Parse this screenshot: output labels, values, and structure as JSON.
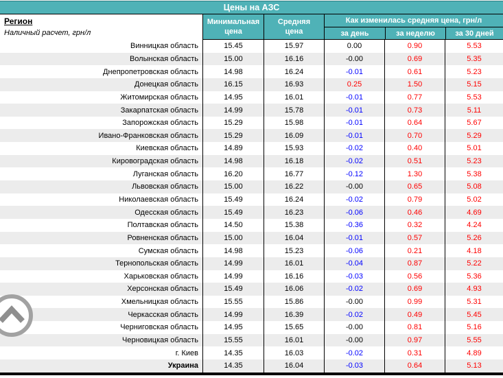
{
  "table": {
    "title": "Цены на АЗС",
    "region_header": {
      "label": "Регион",
      "note": "Наличный расчет, грн/л"
    },
    "columns": {
      "min": "Минимальная цена",
      "avg": "Средняя цена",
      "change_group": "Как изменилась средняя цена, грн/л",
      "change_sub": [
        "за день",
        "за неделю",
        "за 30 дней"
      ]
    },
    "rows": [
      {
        "region": "Винницкая область",
        "min": "15.45",
        "avg": "15.97",
        "day": "0.00",
        "week": "0.90",
        "month": "5.53"
      },
      {
        "region": "Волынская область",
        "min": "15.00",
        "avg": "16.16",
        "day": "-0.00",
        "week": "0.69",
        "month": "5.35"
      },
      {
        "region": "Днепропетровская область",
        "min": "14.98",
        "avg": "16.24",
        "day": "-0.01",
        "week": "0.61",
        "month": "5.23"
      },
      {
        "region": "Донецкая область",
        "min": "16.15",
        "avg": "16.93",
        "day": "0.25",
        "week": "1.50",
        "month": "5.15"
      },
      {
        "region": "Житомирская область",
        "min": "14.95",
        "avg": "16.01",
        "day": "-0.01",
        "week": "0.77",
        "month": "5.53"
      },
      {
        "region": "Закарпатская область",
        "min": "14.99",
        "avg": "15.78",
        "day": "-0.01",
        "week": "0.73",
        "month": "5.11"
      },
      {
        "region": "Запорожская область",
        "min": "15.29",
        "avg": "15.98",
        "day": "-0.01",
        "week": "0.64",
        "month": "5.67"
      },
      {
        "region": "Ивано-Франковская область",
        "min": "15.29",
        "avg": "16.09",
        "day": "-0.01",
        "week": "0.70",
        "month": "5.29"
      },
      {
        "region": "Киевская область",
        "min": "14.89",
        "avg": "15.93",
        "day": "-0.02",
        "week": "0.40",
        "month": "5.01"
      },
      {
        "region": "Кировоградская область",
        "min": "14.98",
        "avg": "16.18",
        "day": "-0.02",
        "week": "0.51",
        "month": "5.23"
      },
      {
        "region": "Луганская область",
        "min": "16.20",
        "avg": "16.77",
        "day": "-0.12",
        "week": "1.30",
        "month": "5.38"
      },
      {
        "region": "Львовская область",
        "min": "15.00",
        "avg": "16.22",
        "day": "-0.00",
        "week": "0.65",
        "month": "5.08"
      },
      {
        "region": "Николаевская область",
        "min": "15.49",
        "avg": "16.24",
        "day": "-0.02",
        "week": "0.79",
        "month": "5.02"
      },
      {
        "region": "Одесская область",
        "min": "15.49",
        "avg": "16.23",
        "day": "-0.06",
        "week": "0.46",
        "month": "4.69"
      },
      {
        "region": "Полтавская область",
        "min": "14.50",
        "avg": "15.38",
        "day": "-0.36",
        "week": "0.32",
        "month": "4.24"
      },
      {
        "region": "Ровненская область",
        "min": "15.00",
        "avg": "16.04",
        "day": "-0.01",
        "week": "0.57",
        "month": "5.26"
      },
      {
        "region": "Сумская область",
        "min": "14.98",
        "avg": "15.23",
        "day": "-0.06",
        "week": "0.21",
        "month": "4.18"
      },
      {
        "region": "Тернопольская область",
        "min": "14.99",
        "avg": "16.01",
        "day": "-0.04",
        "week": "0.87",
        "month": "5.22"
      },
      {
        "region": "Харьковская область",
        "min": "14.99",
        "avg": "16.16",
        "day": "-0.03",
        "week": "0.56",
        "month": "5.36"
      },
      {
        "region": "Херсонская область",
        "min": "15.49",
        "avg": "16.06",
        "day": "-0.02",
        "week": "0.69",
        "month": "4.93"
      },
      {
        "region": "Хмельницкая область",
        "min": "15.55",
        "avg": "15.86",
        "day": "-0.00",
        "week": "0.99",
        "month": "5.31"
      },
      {
        "region": "Черкасская область",
        "min": "14.99",
        "avg": "16.39",
        "day": "-0.02",
        "week": "0.49",
        "month": "5.45"
      },
      {
        "region": "Черниговская область",
        "min": "14.95",
        "avg": "15.65",
        "day": "-0.00",
        "week": "0.81",
        "month": "5.16"
      },
      {
        "region": "Черновицкая область",
        "min": "15.55",
        "avg": "16.01",
        "day": "-0.00",
        "week": "0.97",
        "month": "5.55"
      },
      {
        "region": "г. Киев",
        "min": "14.35",
        "avg": "16.03",
        "day": "-0.02",
        "week": "0.31",
        "month": "4.89"
      },
      {
        "region": "Украина",
        "min": "14.35",
        "avg": "16.04",
        "day": "-0.03",
        "week": "0.64",
        "month": "5.13",
        "is_total": true
      }
    ]
  },
  "icons": {
    "scroll_to_top": "chevron-up-circle"
  },
  "colors": {
    "accent": "#4FB2B7",
    "stripe": "#ECECEC",
    "positive_change": "#FF0000",
    "negative_change": "#0000FF",
    "border": "#000000"
  }
}
